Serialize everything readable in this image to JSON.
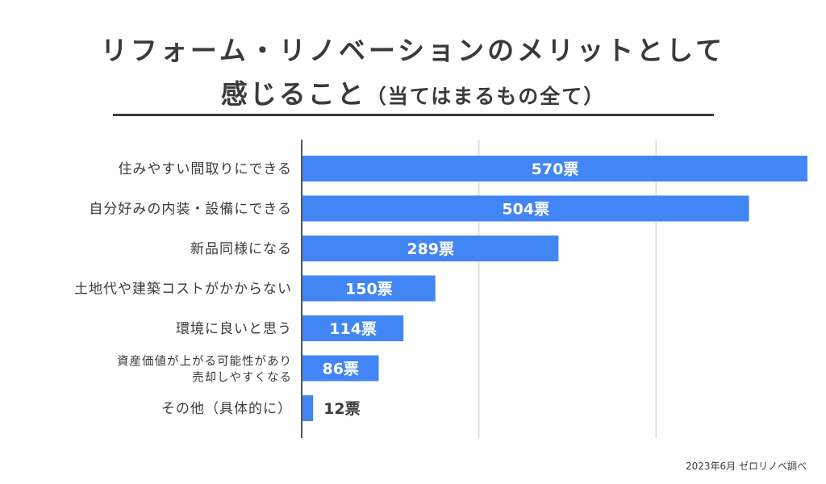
{
  "title_line1": "リフォーム・リノベーションのメリットとして",
  "title_line2_main": "感じること",
  "title_line2_sub": "（当てはまるもの全て）",
  "source_note": "2023年6月 ゼロリノベ調べ",
  "colors": {
    "bar": "#4285f4",
    "axis": "#555555",
    "grid": "#d9d9d9",
    "text": "#3a3a3a"
  },
  "chart_data": {
    "type": "bar",
    "orientation": "horizontal",
    "title": "リフォーム・リノベーションのメリットとして感じること（当てはまるもの全て）",
    "categories": [
      [
        "住みやすい間取りにできる"
      ],
      [
        "自分好みの内装・設備にできる"
      ],
      [
        "新品同様になる"
      ],
      [
        "土地代や建築コストがかからない"
      ],
      [
        "環境に良いと思う"
      ],
      [
        "資産価値が上がる可能性があり",
        "売却しやすくなる"
      ],
      [
        "その他（具体的に）"
      ]
    ],
    "values": [
      570,
      504,
      289,
      150,
      114,
      86,
      12
    ],
    "value_labels": [
      "570票",
      "504票",
      "289票",
      "150票",
      "114票",
      "86票",
      "12票"
    ],
    "unit": "票",
    "xlim": [
      0,
      570
    ],
    "gridlines": [
      200,
      400
    ],
    "xlabel": "",
    "ylabel": ""
  }
}
